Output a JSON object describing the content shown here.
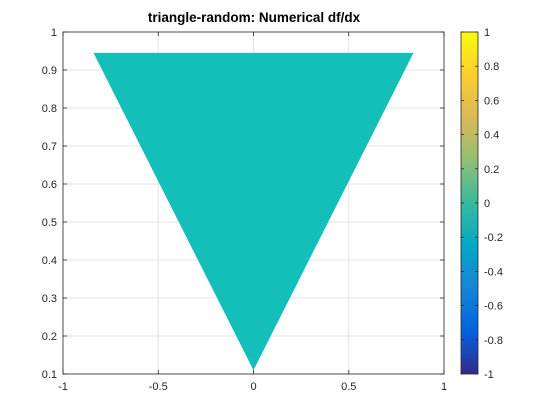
{
  "chart_data": {
    "type": "area",
    "title": "triangle-random: Numerical df/dx",
    "xlabel": "",
    "ylabel": "",
    "xlim": [
      -1,
      1
    ],
    "ylim": [
      0.1,
      1
    ],
    "x_ticks": [
      -1,
      -0.5,
      0,
      0.5,
      1
    ],
    "x_tick_labels": [
      "-1",
      "-0.5",
      "0",
      "0.5",
      "1"
    ],
    "y_ticks": [
      0.1,
      0.2,
      0.3,
      0.4,
      0.5,
      0.6,
      0.7,
      0.8,
      0.9,
      1
    ],
    "y_tick_labels": [
      "0.1",
      "0.2",
      "0.3",
      "0.4",
      "0.5",
      "0.6",
      "0.7",
      "0.8",
      "0.9",
      "1"
    ],
    "grid": true,
    "series": [
      {
        "shape": "filled-triangle",
        "x": [
          -0.84,
          0.84,
          0
        ],
        "y": [
          0.945,
          0.945,
          0.11
        ],
        "value": 0,
        "color": "#13bfb8"
      }
    ],
    "colorbar": {
      "colormap": "parula",
      "clim": [
        -1,
        1
      ],
      "ticks": [
        1,
        0.8,
        0.6,
        0.4,
        0.2,
        0,
        -0.2,
        -0.4,
        -0.6,
        -0.8,
        -1
      ],
      "tick_labels": [
        "1",
        "0.8",
        "0.6",
        "0.4",
        "0.2",
        "0",
        "-0.2",
        "-0.4",
        "-0.6",
        "-0.8",
        "-1"
      ],
      "stops": [
        "#352a87",
        "#0363e1",
        "#1485d4",
        "#06a7c6",
        "#38b99e",
        "#92bf73",
        "#d9ba56",
        "#fcce2e",
        "#f9fb0e"
      ]
    }
  }
}
